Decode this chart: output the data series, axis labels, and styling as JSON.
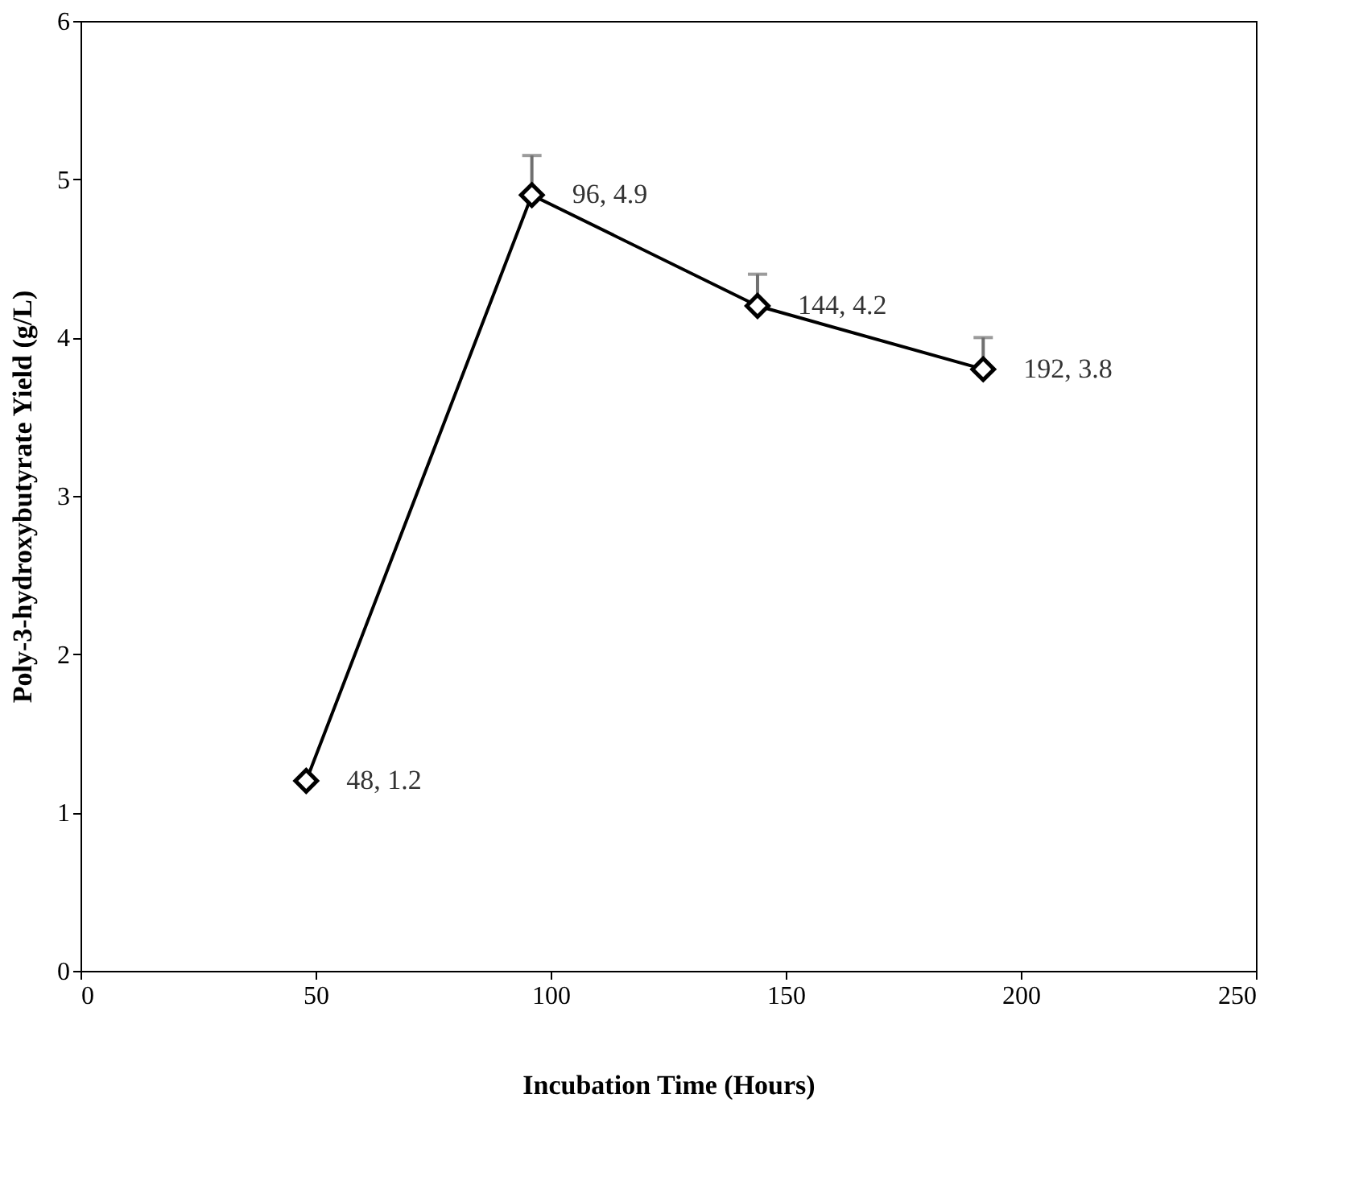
{
  "chart_data": {
    "type": "line",
    "xlabel": "Incubation Time (Hours)",
    "ylabel": "Poly-3-hydroxybutyrate  Yield (g/L)",
    "x": [
      48,
      96,
      144,
      192
    ],
    "series": [
      {
        "color": "#000000",
        "values": [
          1.2,
          4.9,
          4.2,
          3.8
        ],
        "errors": [
          null,
          [
            4.9,
            5.15
          ],
          [
            4.2,
            4.4
          ],
          [
            3.8,
            4.0
          ]
        ],
        "value_labels": [
          "48, 1.2",
          "96, 4.9",
          "144, 4.2",
          "192, 3.8"
        ]
      }
    ],
    "xlim": [
      0,
      250
    ],
    "xticks": [
      0,
      50,
      100,
      150,
      200,
      250
    ],
    "ylim": [
      0,
      6
    ],
    "yticks": [
      0,
      1,
      2,
      3,
      4,
      5,
      6
    ],
    "grid": false,
    "marker": "diamond",
    "line_style": "solid"
  }
}
